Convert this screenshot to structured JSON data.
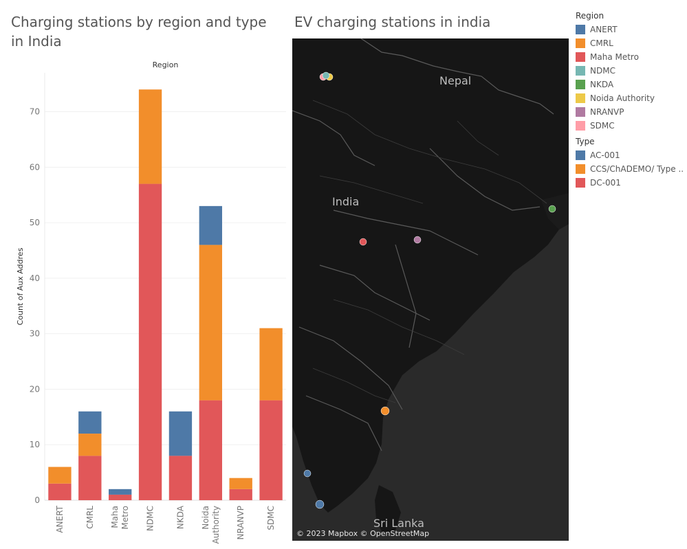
{
  "titles": {
    "left": "Charging stations by region and type in India",
    "right": "EV charging stations in india"
  },
  "map": {
    "labels": {
      "nepal": "Nepal",
      "india": "India",
      "sri_lanka": "Sri Lanka"
    },
    "credit": "© 2023 Mapbox © OpenStreetMap"
  },
  "legend": {
    "region_title": "Region",
    "regions": [
      {
        "name": "ANERT",
        "color": "#4e79a7"
      },
      {
        "name": "CMRL",
        "color": "#f28e2b"
      },
      {
        "name": "Maha Metro",
        "color": "#e15759"
      },
      {
        "name": "NDMC",
        "color": "#76b7b2"
      },
      {
        "name": "NKDA",
        "color": "#59a14f"
      },
      {
        "name": "Noida Authority",
        "color": "#edc948"
      },
      {
        "name": "NRANVP",
        "color": "#b07aa1"
      },
      {
        "name": "SDMC",
        "color": "#ff9da7"
      }
    ],
    "type_title": "Type",
    "types": [
      {
        "name": "AC-001",
        "color": "#4e79a7"
      },
      {
        "name": "CCS/ChADEMO/ Type ..",
        "color": "#f28e2b"
      },
      {
        "name": "DC-001",
        "color": "#e15759"
      }
    ]
  },
  "chart_data": {
    "type": "bar",
    "stacked": true,
    "title": "Charging stations by region and type in India",
    "column_header": "Region",
    "xlabel": "",
    "ylabel": "Count of Aux Addres",
    "ylim": [
      0,
      77
    ],
    "yticks": [
      0,
      10,
      20,
      30,
      40,
      50,
      60,
      70
    ],
    "grid": true,
    "categories": [
      [
        "ANERT"
      ],
      [
        "CMRL"
      ],
      [
        "Maha",
        "Metro"
      ],
      [
        "NDMC"
      ],
      [
        "NKDA"
      ],
      [
        "Noida",
        "Authority"
      ],
      [
        "NRANVP"
      ],
      [
        "SDMC"
      ]
    ],
    "series": [
      {
        "name": "DC-001",
        "color": "#e15759",
        "values": [
          3,
          8,
          1,
          57,
          8,
          18,
          2,
          18
        ]
      },
      {
        "name": "CCS/ChADEMO/ Type ..",
        "color": "#f28e2b",
        "values": [
          3,
          4,
          0,
          17,
          0,
          28,
          2,
          13
        ]
      },
      {
        "name": "AC-001",
        "color": "#4e79a7",
        "values": [
          0,
          4,
          1,
          0,
          8,
          7,
          0,
          0
        ]
      }
    ]
  }
}
